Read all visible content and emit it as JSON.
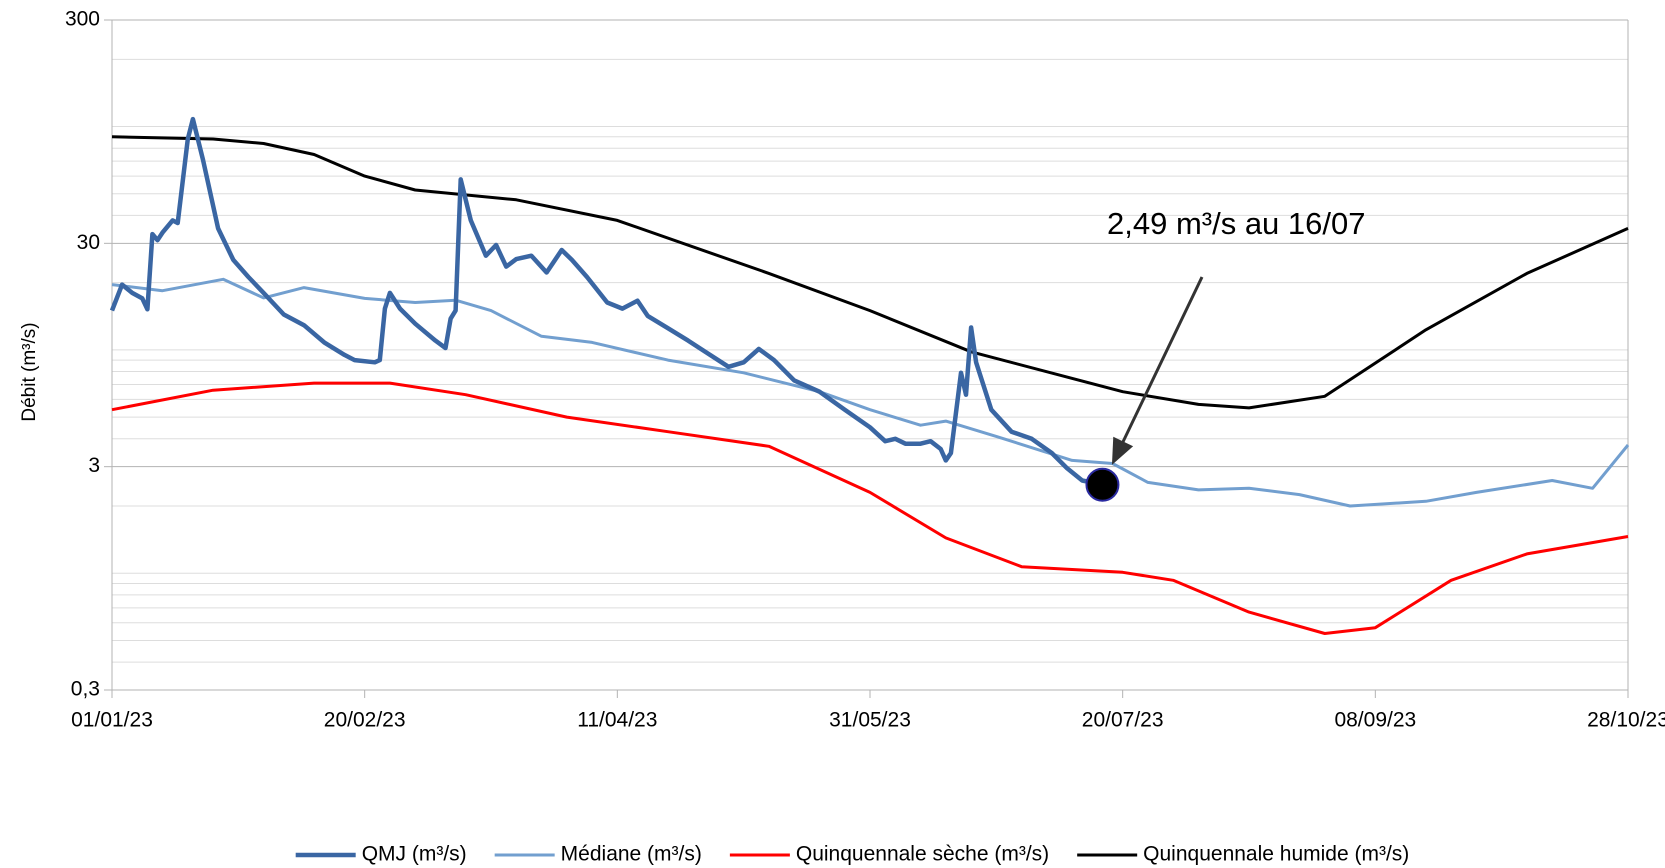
{
  "chart_data": {
    "type": "line",
    "ylabel": "Débit (m³/s)",
    "annotation": "2,49 m³/s au 16/07",
    "log_y": true,
    "grid": true,
    "minor_grid": true,
    "legend": "bottom",
    "xlim": [
      "01/01/23",
      "28/10/23"
    ],
    "xticks": [
      "01/01/23",
      "20/02/23",
      "11/04/23",
      "31/05/23",
      "20/07/23",
      "08/09/23",
      "28/10/23"
    ],
    "ylim": [
      0.3,
      300
    ],
    "yticks": [
      {
        "value": 0.3,
        "label": "0,3"
      },
      3,
      30,
      300
    ],
    "series": [
      {
        "name": "QMJ (m³/s)",
        "color": "#3a66a3",
        "width": 4.5,
        "x": [
          "01/01/23",
          "03/01/23",
          "05/01/23",
          "07/01/23",
          "08/01/23",
          "09/01/23",
          "10/01/23",
          "11/01/23",
          "13/01/23",
          "14/01/23",
          "16/01/23",
          "17/01/23",
          "19/01/23",
          "22/01/23",
          "25/01/23",
          "28/01/23",
          "31/01/23",
          "04/02/23",
          "08/02/23",
          "12/02/23",
          "16/02/23",
          "18/02/23",
          "22/02/23",
          "23/02/23",
          "24/02/23",
          "25/02/23",
          "27/02/23",
          "02/03/23",
          "06/03/23",
          "08/03/23",
          "09/03/23",
          "10/03/23",
          "11/03/23",
          "13/03/23",
          "16/03/23",
          "18/03/23",
          "20/03/23",
          "22/03/23",
          "25/03/23",
          "28/03/23",
          "31/03/23",
          "02/04/23",
          "05/04/23",
          "09/04/23",
          "12/04/23",
          "15/04/23",
          "17/04/23",
          "21/04/23",
          "25/04/23",
          "29/04/23",
          "03/05/23",
          "06/05/23",
          "09/05/23",
          "12/05/23",
          "16/05/23",
          "21/05/23",
          "26/05/23",
          "31/05/23",
          "03/06/23",
          "05/06/23",
          "07/06/23",
          "10/06/23",
          "12/06/23",
          "14/06/23",
          "15/06/23",
          "16/06/23",
          "18/06/23",
          "19/06/23",
          "20/06/23",
          "21/06/23",
          "24/06/23",
          "28/06/23",
          "02/07/23",
          "06/07/23",
          "09/07/23",
          "12/07/23",
          "16/07/23"
        ],
        "values": [
          15,
          19.6,
          18,
          17,
          15.2,
          33,
          31,
          33.5,
          38,
          37,
          88,
          108,
          71,
          35,
          25.3,
          21.2,
          18,
          14.4,
          12.9,
          10.8,
          9.5,
          9.0,
          8.8,
          9.0,
          15.3,
          18,
          15.3,
          13.1,
          11.0,
          10.2,
          13.8,
          15,
          58,
          38,
          26.4,
          29.5,
          23.6,
          25.5,
          26.4,
          22.2,
          28,
          25.3,
          21.2,
          16.3,
          15.3,
          16.6,
          14.2,
          12.5,
          11,
          9.6,
          8.4,
          8.8,
          10.1,
          9.0,
          7.3,
          6.5,
          5.4,
          4.5,
          3.9,
          4.0,
          3.8,
          3.8,
          3.9,
          3.6,
          3.2,
          3.45,
          7.9,
          6.3,
          12.6,
          8.8,
          5.4,
          4.3,
          4.0,
          3.45,
          2.95,
          2.6,
          2.49
        ]
      },
      {
        "name": "Médiane (m³/s)",
        "color": "#729fcf",
        "width": 3,
        "x": [
          "01/01/23",
          "11/01/23",
          "23/01/23",
          "31/01/23",
          "08/02/23",
          "20/02/23",
          "02/03/23",
          "10/03/23",
          "17/03/23",
          "27/03/23",
          "06/04/23",
          "21/04/23",
          "06/05/23",
          "21/05/23",
          "31/05/23",
          "10/06/23",
          "15/06/23",
          "25/06/23",
          "10/07/23",
          "18/07/23",
          "25/07/23",
          "04/08/23",
          "14/08/23",
          "24/08/23",
          "03/09/23",
          "18/09/23",
          "28/09/23",
          "13/10/23",
          "21/10/23",
          "28/10/23"
        ],
        "values": [
          19.6,
          18.4,
          20.7,
          17.1,
          19.0,
          17,
          16.3,
          16.7,
          15.0,
          11.5,
          10.8,
          9.0,
          7.9,
          6.5,
          5.4,
          4.6,
          4.8,
          4.1,
          3.2,
          3.1,
          2.55,
          2.36,
          2.4,
          2.25,
          2.0,
          2.1,
          2.3,
          2.6,
          2.4,
          3.75
        ]
      },
      {
        "name": "Quinquennale sèche (m³/s)",
        "color": "#ff0000",
        "width": 3,
        "x": [
          "01/01/23",
          "21/01/23",
          "10/02/23",
          "25/02/23",
          "12/03/23",
          "01/04/23",
          "21/04/23",
          "11/05/23",
          "31/05/23",
          "15/06/23",
          "30/06/23",
          "20/07/23",
          "30/07/23",
          "14/08/23",
          "29/08/23",
          "08/09/23",
          "23/09/23",
          "08/10/23",
          "28/10/23"
        ],
        "values": [
          5.4,
          6.6,
          7.1,
          7.1,
          6.3,
          5.0,
          4.3,
          3.7,
          2.3,
          1.44,
          1.07,
          1.01,
          0.93,
          0.67,
          0.537,
          0.57,
          0.93,
          1.22,
          1.46
        ]
      },
      {
        "name": "Quinquennale humide (m³/s)",
        "color": "#000000",
        "width": 3,
        "x": [
          "01/01/23",
          "21/01/23",
          "31/01/23",
          "10/02/23",
          "20/02/23",
          "02/03/23",
          "22/03/23",
          "11/04/23",
          "11/05/23",
          "31/05/23",
          "20/06/23",
          "20/07/23",
          "04/08/23",
          "14/08/23",
          "29/08/23",
          "18/09/23",
          "08/10/23",
          "28/10/23"
        ],
        "values": [
          90,
          88,
          84,
          75,
          60,
          52,
          47,
          38,
          22,
          15,
          9.8,
          6.5,
          5.7,
          5.5,
          6.2,
          12.3,
          22,
          35
        ]
      }
    ]
  }
}
